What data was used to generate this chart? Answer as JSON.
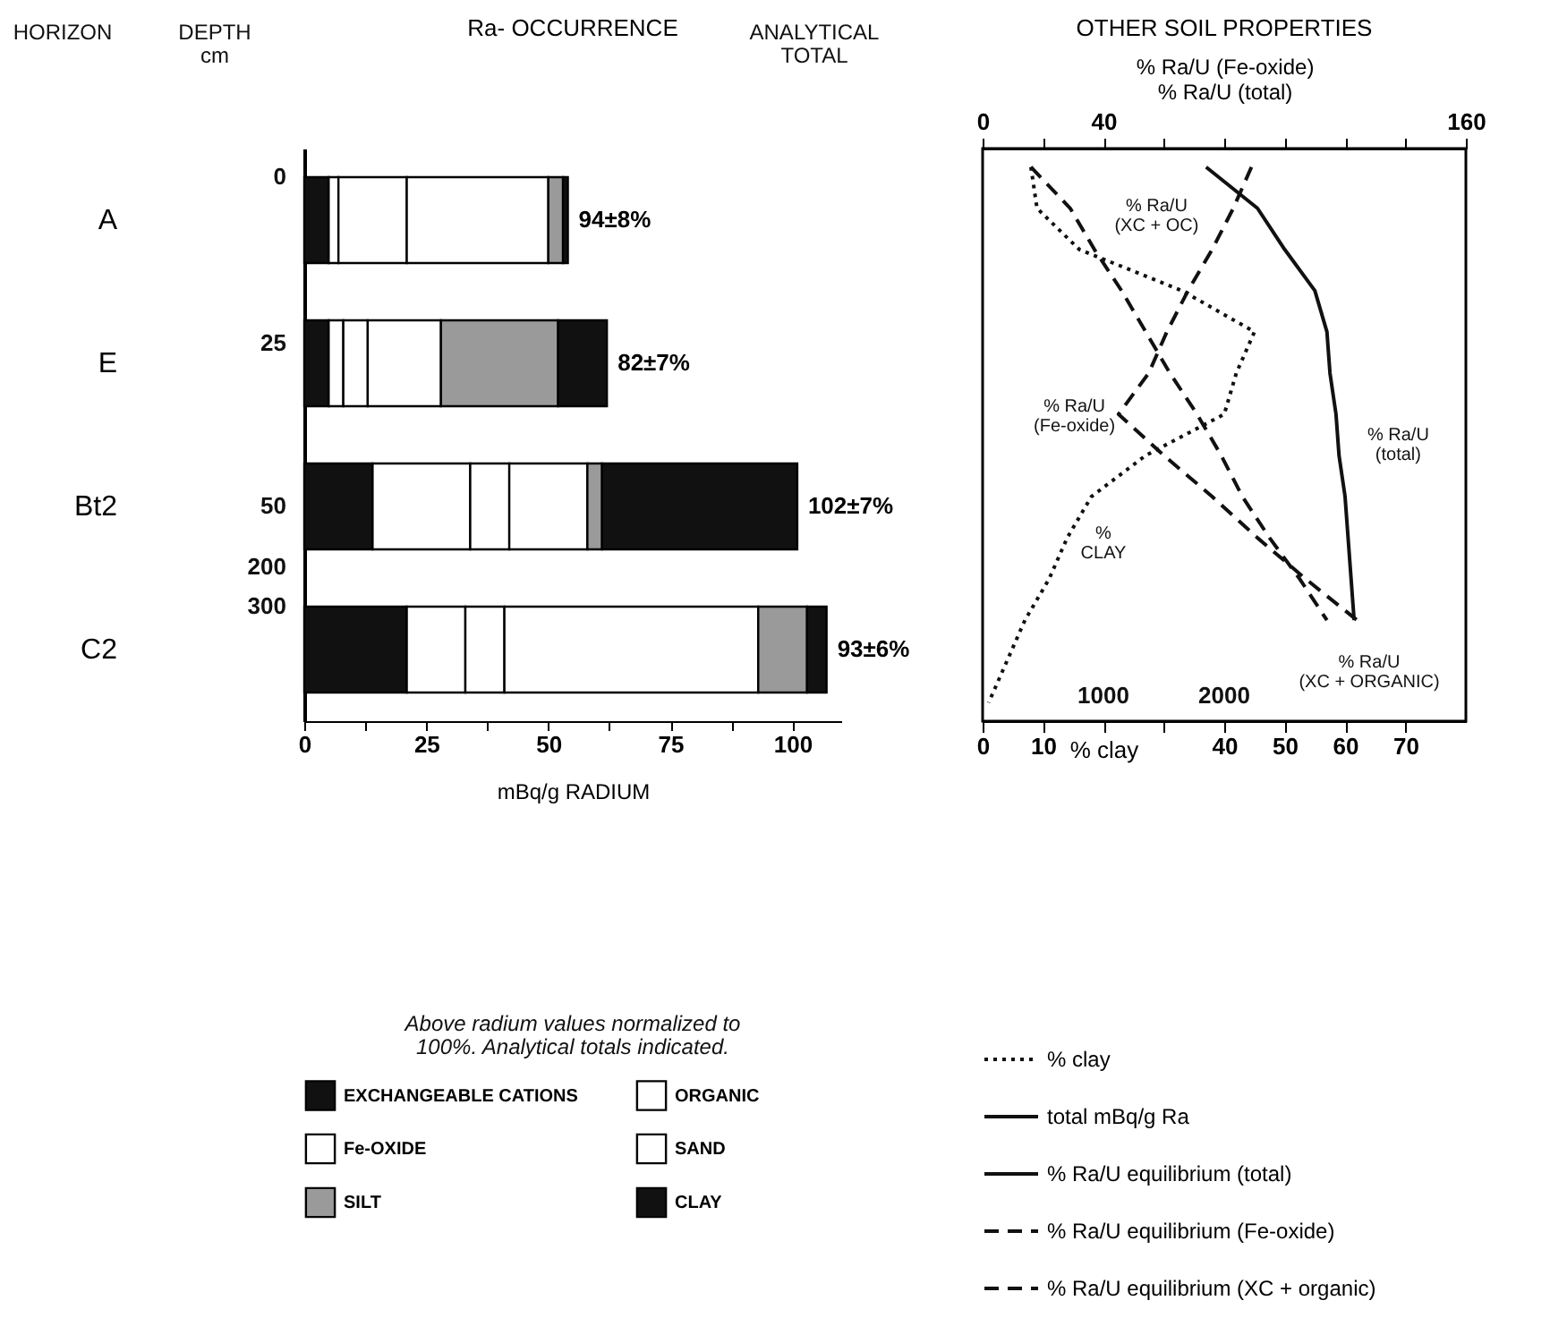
{
  "chart_data": [
    {
      "type": "bar",
      "orientation": "horizontal",
      "stacked": true,
      "title": "Ra- OCCURRENCE",
      "xlabel": "mBq/g RADIUM",
      "categories": [
        "A",
        "E",
        "Bt2",
        "C2"
      ],
      "series": [
        {
          "name": "EXCHANGEABLE CATIONS",
          "color": "#111111",
          "values": [
            5,
            5,
            14,
            21
          ]
        },
        {
          "name": "ORGANIC",
          "color": "#ffffff",
          "values": [
            2,
            3,
            20,
            12
          ]
        },
        {
          "name": "Fe-OXIDE",
          "color": "#ffffff",
          "values": [
            14,
            5,
            8,
            8
          ]
        },
        {
          "name": "SAND",
          "color": "#ffffff",
          "values": [
            29,
            15,
            16,
            52
          ]
        },
        {
          "name": "SILT",
          "color": "#9a9a9a",
          "values": [
            3,
            24,
            3,
            10
          ]
        },
        {
          "name": "CLAY",
          "color": "#111111",
          "values": [
            1,
            10,
            40,
            4
          ]
        }
      ],
      "xlim": [
        0,
        110
      ],
      "xticks": [
        0,
        {
          "value": 12.5,
          "label": null
        },
        25,
        {
          "value": 37.5,
          "label": null
        },
        50,
        {
          "value": 62.5,
          "label": null
        },
        75,
        {
          "value": 87.5,
          "label": null
        },
        100
      ],
      "totals": [
        "94±8%",
        "82±7%",
        "102±7%",
        "93±6%"
      ],
      "legend": "bottom",
      "annotations": [
        "HORIZON",
        "DEPTH\ncm",
        "ANALYTICAL\nTOTAL",
        "0",
        "25",
        "50",
        "200",
        "300",
        "Above radium values normalized to\n100%.  Analytical totals indicated."
      ]
    },
    {
      "type": "line",
      "orientation": "horizontal",
      "title": "OTHER SOIL PROPERTIES",
      "xlabel": "% clay",
      "x2label": "% Ra/U (Fe-oxide)\n% Ra/U (total)",
      "categories": [
        null,
        null,
        null,
        null,
        null,
        null,
        null,
        null,
        null,
        null,
        null,
        null,
        null,
        null
      ],
      "series": [
        {
          "name": "% clay",
          "color": "#111111",
          "line_style": "dotted",
          "values": [
            8,
            9,
            16,
            33,
            45,
            42,
            40,
            27,
            18,
            14,
            11,
            7,
            4,
            1
          ]
        },
        {
          "name": "total mBq/g Ra",
          "color": "#111111",
          "line_style": "solid",
          "values": [
            null,
            null,
            null,
            null,
            null,
            null,
            null,
            null,
            null,
            null,
            null,
            null,
            null,
            null
          ]
        },
        {
          "name": "% Ra/U equilibrium (total)",
          "color": "#111111",
          "line_style": "solid",
          "axis": "x2",
          "values": [
            74,
            91,
            100,
            110,
            114,
            115,
            117,
            118,
            120,
            121,
            122,
            123,
            null,
            null
          ]
        },
        {
          "name": "% Ra/U equilibrium (Fe-oxide)",
          "color": "#111111",
          "line_style": "dashed",
          "axis": "x2",
          "values": [
            89,
            83,
            76,
            68,
            61,
            55,
            45,
            60,
            76,
            91,
            107,
            124,
            null,
            null
          ]
        },
        {
          "name": "% Ra/U equilibrium (XC + organic)",
          "color": "#111111",
          "line_style": "dashed",
          "axis": "x2",
          "values": [
            16,
            29,
            37,
            46,
            54,
            62,
            71,
            79,
            86,
            95,
            105,
            114,
            null,
            null
          ]
        }
      ],
      "xlim": [
        0,
        80
      ],
      "xticks": [
        0,
        10,
        {
          "value": 20,
          "label": null
        },
        {
          "value": 30,
          "label": null
        },
        40,
        50,
        60,
        70
      ],
      "x2lim": [
        0,
        160
      ],
      "x2ticks": [
        0,
        {
          "value": 20,
          "label": null
        },
        40,
        {
          "value": 60,
          "label": null
        },
        {
          "value": 80,
          "label": null
        },
        {
          "value": 100,
          "label": null
        },
        {
          "value": 120,
          "label": null
        },
        {
          "value": 140,
          "label": null
        },
        160
      ],
      "tick_labels": "x",
      "legend": "bottom",
      "annotations": [
        "% Ra/U\n(XC + OC)",
        "% Ra/U\n(Fe-oxide)",
        "% Ra/U\n(total)",
        "%\nCLAY",
        "% Ra/U\n(XC + ORGANIC)",
        "1000",
        "2000"
      ]
    }
  ]
}
